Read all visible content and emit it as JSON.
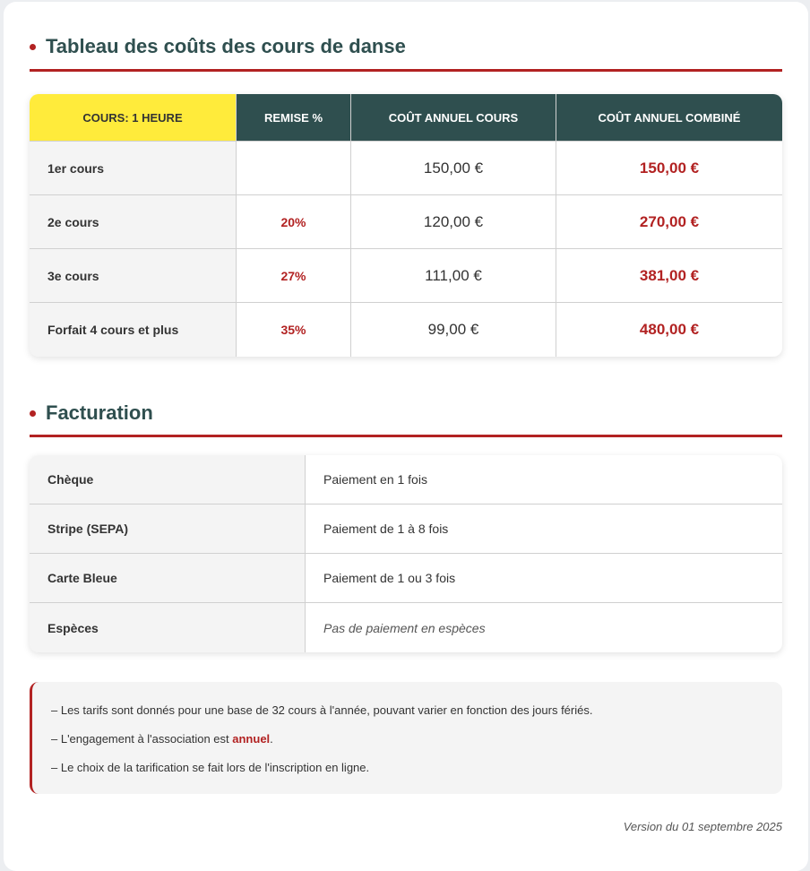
{
  "section1": {
    "title": "Tableau des coûts des cours de danse",
    "headers": [
      "COURS: 1 HEURE",
      "REMISE %",
      "COÛT ANNUEL COURS",
      "COÛT ANNUEL COMBINÉ"
    ],
    "rows": [
      {
        "label": "1er cours",
        "discount": "",
        "annual": "150,00 €",
        "combined": "150,00 €"
      },
      {
        "label": "2e cours",
        "discount": "20%",
        "annual": "120,00 €",
        "combined": "270,00 €"
      },
      {
        "label": "3e cours",
        "discount": "27%",
        "annual": "111,00 €",
        "combined": "381,00 €"
      },
      {
        "label": "Forfait 4 cours et plus",
        "discount": "35%",
        "annual": "99,00 €",
        "combined": "480,00 €"
      }
    ]
  },
  "section2": {
    "title": "Facturation",
    "rows": [
      {
        "method": "Chèque",
        "details": "Paiement en 1 fois"
      },
      {
        "method": "Stripe (SEPA)",
        "details": "Paiement de 1 à 8 fois"
      },
      {
        "method": "Carte Bleue",
        "details": "Paiement de 1 ou 3 fois"
      },
      {
        "method": "Espèces",
        "details": "Pas de paiement en espèces"
      }
    ]
  },
  "notes": {
    "line1": "– Les tarifs sont donnés pour une base de 32 cours à l'année, pouvant varier en fonction des jours fériés.",
    "line2_prefix": "– L'engagement à l'association est ",
    "line2_highlight": "annuel",
    "line2_suffix": ".",
    "line3": "– Le choix de la tarification se fait lors de l'inscription en ligne."
  },
  "version": "Version du 01 septembre 2025"
}
